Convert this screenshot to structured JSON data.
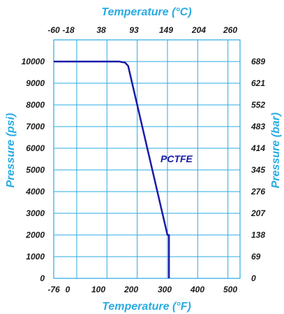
{
  "chart_data": {
    "type": "line",
    "title": "",
    "x_top_label": "Temperature (°C)",
    "x_bottom_label": "Temperature (°F)",
    "y_left_label": "Pressure (psi)",
    "y_right_label": "Pressure (bar)",
    "x_bottom_ticks": [
      "-76",
      "0",
      "100",
      "200",
      "300",
      "400",
      "500"
    ],
    "x_top_ticks": [
      "-60",
      "-18",
      "38",
      "93",
      "149",
      "204",
      "260"
    ],
    "y_left_ticks": [
      "0",
      "1000",
      "2000",
      "3000",
      "4000",
      "5000",
      "6000",
      "7000",
      "8000",
      "9000",
      "10000"
    ],
    "y_right_ticks": [
      "0",
      "69",
      "138",
      "207",
      "276",
      "345",
      "414",
      "483",
      "552",
      "621",
      "689"
    ],
    "xlim": [
      -76,
      540
    ],
    "ylim": [
      0,
      10000
    ],
    "grid": true,
    "series": [
      {
        "name": "PCTFE",
        "x": [
          -76,
          140,
          160,
          170,
          300,
          305,
          305
        ],
        "y": [
          10000,
          10000,
          9950,
          9800,
          2000,
          2000,
          0
        ]
      }
    ],
    "colors": {
      "axis_title": "#29abe2",
      "grid": "#29abe2",
      "line": "#1a1aa8",
      "tick_text": "#1a1a1a"
    }
  }
}
